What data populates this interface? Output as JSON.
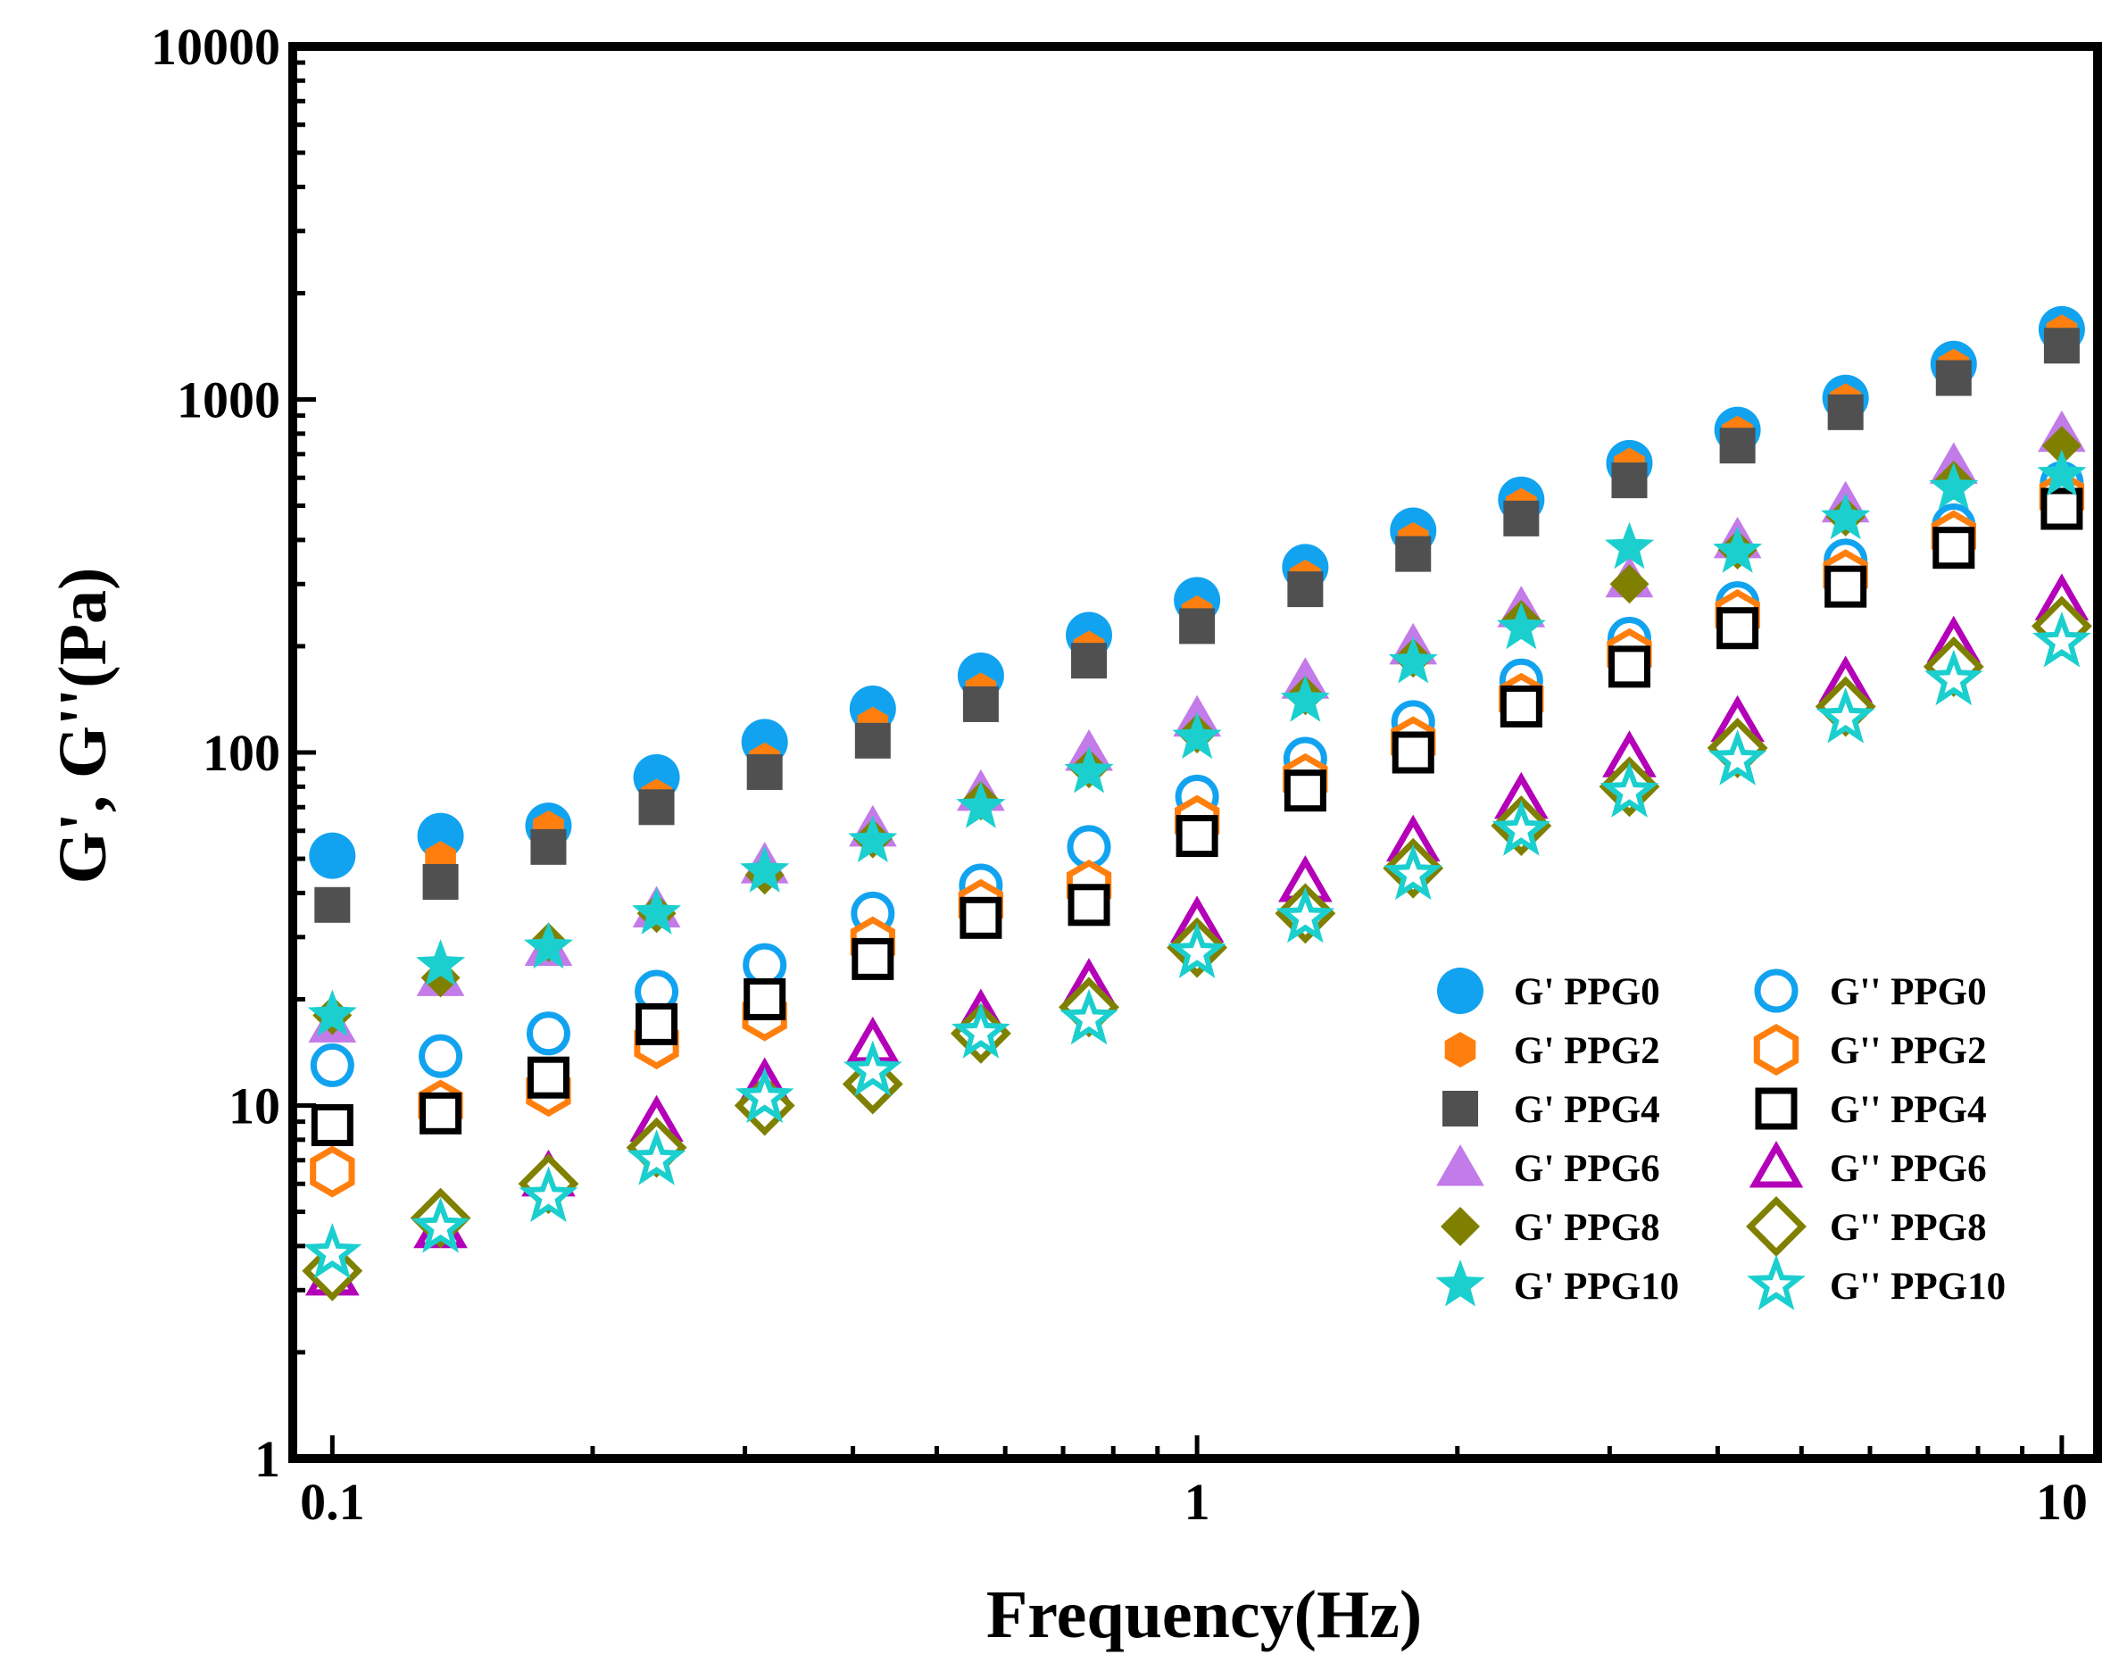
{
  "chart_data": {
    "type": "scatter",
    "xlabel": "Frequency(Hz)",
    "ylabel": "G', G''(Pa)",
    "xscale": "log",
    "yscale": "log",
    "xlim": [
      0.09,
      11
    ],
    "ylim": [
      1,
      10000
    ],
    "x_ticks": [
      {
        "value": 0.1,
        "label": "0.1"
      },
      {
        "value": 1,
        "label": "1"
      },
      {
        "value": 10,
        "label": "10"
      }
    ],
    "y_ticks": [
      {
        "value": 1,
        "label": "1"
      },
      {
        "value": 10,
        "label": "10"
      },
      {
        "value": 100,
        "label": "100"
      },
      {
        "value": 1000,
        "label": "1000"
      },
      {
        "value": 10000,
        "label": "10000"
      }
    ],
    "grid": false,
    "legend_position": "lower-right",
    "x": [
      0.1,
      0.1334,
      0.1778,
      0.2371,
      0.3162,
      0.4217,
      0.5623,
      0.7499,
      1,
      1.334,
      1.778,
      2.371,
      3.162,
      4.217,
      5.623,
      7.499,
      10
    ],
    "series": [
      {
        "name": "G' PPG0",
        "marker": "circle-filled",
        "color": "#12a3f0",
        "values": [
          51,
          58,
          62,
          85,
          107,
          133,
          165,
          215,
          270,
          335,
          425,
          520,
          660,
          820,
          1010,
          1260,
          1580
        ]
      },
      {
        "name": "G'' PPG0",
        "marker": "circle-open",
        "color": "#12a3f0",
        "values": [
          13,
          13.8,
          16,
          21,
          25,
          35,
          42,
          54,
          75,
          96,
          122,
          160,
          210,
          265,
          350,
          440,
          580
        ]
      },
      {
        "name": "G' PPG2",
        "marker": "hexagon-filled",
        "color": "#ff7f0e",
        "values": [
          37,
          50,
          61,
          75,
          95,
          120,
          150,
          197,
          248,
          313,
          400,
          500,
          650,
          800,
          990,
          1240,
          1550
        ]
      },
      {
        "name": "G'' PPG2",
        "marker": "hexagon-open",
        "color": "#ff7f0e",
        "values": [
          6.5,
          10,
          11,
          15,
          18,
          29,
          37,
          42,
          64,
          84,
          107,
          142,
          190,
          245,
          318,
          410,
          530
        ]
      },
      {
        "name": "G' PPG4",
        "marker": "square-filled",
        "color": "#505050",
        "values": [
          37,
          43,
          54,
          70,
          88,
          108,
          137,
          182,
          228,
          290,
          365,
          460,
          590,
          740,
          920,
          1150,
          1420
        ]
      },
      {
        "name": "G'' PPG4",
        "marker": "square-open",
        "color": "#000000",
        "values": [
          8.8,
          9.5,
          12,
          17,
          20,
          26,
          34,
          37,
          58,
          78,
          100,
          135,
          175,
          225,
          295,
          380,
          490
        ]
      },
      {
        "name": "G' PPG6",
        "marker": "triangle-filled",
        "color": "#c27be8",
        "values": [
          17,
          23,
          28,
          36,
          48,
          61,
          77,
          100,
          125,
          160,
          200,
          255,
          310,
          400,
          505,
          650,
          800
        ]
      },
      {
        "name": "G'' PPG6",
        "marker": "triangle-open",
        "color": "#b400b8",
        "values": [
          3.3,
          4.5,
          6.3,
          9,
          11.5,
          15,
          18,
          22,
          33,
          43,
          56,
          74,
          97,
          122,
          158,
          205,
          270
        ]
      },
      {
        "name": "G' PPG8",
        "marker": "diamond-filled",
        "color": "#808000",
        "values": [
          18,
          23,
          29,
          35,
          45,
          57,
          73,
          90,
          113,
          145,
          185,
          238,
          300,
          375,
          465,
          590,
          740
        ]
      },
      {
        "name": "G'' PPG8",
        "marker": "diamond-open",
        "color": "#808000",
        "values": [
          3.4,
          4.8,
          6,
          7.6,
          10,
          11.5,
          16,
          19,
          28,
          35,
          47,
          62,
          80,
          103,
          135,
          175,
          228
        ]
      },
      {
        "name": "G' PPG10",
        "marker": "star-filled",
        "color": "#1ccfcf",
        "values": [
          18,
          25,
          28,
          35,
          46,
          56,
          70,
          88,
          110,
          140,
          180,
          225,
          380,
          370,
          460,
          560,
          610
        ]
      },
      {
        "name": "G'' PPG10",
        "marker": "star-open",
        "color": "#1ccfcf",
        "values": [
          3.8,
          4.5,
          5.5,
          7,
          10.5,
          12.5,
          16,
          17.5,
          27,
          34,
          45,
          60,
          77,
          95,
          125,
          160,
          205
        ]
      }
    ]
  }
}
